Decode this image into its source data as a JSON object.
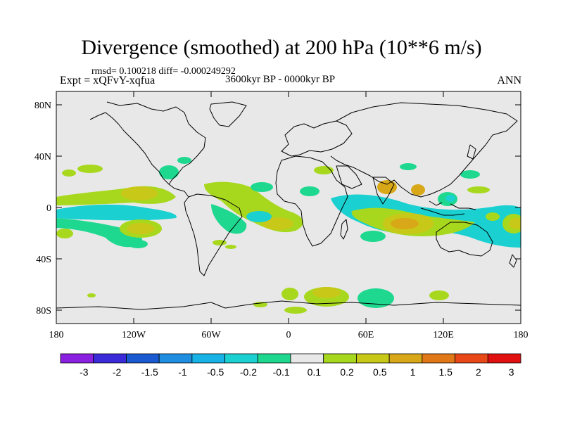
{
  "title": "Divergence (smoothed) at 200 hPa (10**6 m/s)",
  "stats_line": "rmsd= 0.100218 diff= -0.000249292",
  "experiment_label": "Expt = xQFvY-xqfua",
  "period_label": "3600kyr BP - 0000kyr BP",
  "season_label": "ANN",
  "y_ticks": [
    "80N",
    "40N",
    "0",
    "40S",
    "80S"
  ],
  "x_ticks": [
    "180",
    "120W",
    "60W",
    "0",
    "60E",
    "120E",
    "180"
  ],
  "colorbar": {
    "labels": [
      "-3",
      "-2",
      "-1.5",
      "-1",
      "-0.5",
      "-0.2",
      "-0.1",
      "0.1",
      "0.2",
      "0.5",
      "1",
      "1.5",
      "2",
      "3"
    ],
    "colors": [
      "#8a20e0",
      "#3a2ad8",
      "#1a5ad0",
      "#1f8ee0",
      "#17b2e6",
      "#1ad0d0",
      "#1fd890",
      "#e8e8e8",
      "#a8d81e",
      "#c8c818",
      "#d8a818",
      "#e07818",
      "#e84818",
      "#e01010"
    ]
  },
  "colors": {
    "land_ocean_bg": "#e8e8e8",
    "pos_weak": "#a8d81e",
    "pos_mid": "#c8c818",
    "pos_strong": "#d8a818",
    "neg_weak": "#1fd890",
    "neg_mid": "#1ad0d0",
    "neg_strong": "#17b2e6"
  }
}
